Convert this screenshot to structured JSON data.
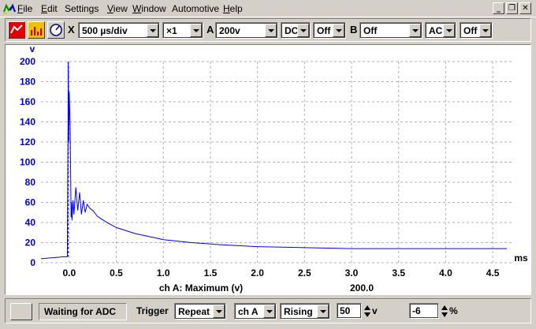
{
  "menu": {
    "items": [
      {
        "label": "File",
        "u": "F",
        "rest": "ile"
      },
      {
        "label": "Edit",
        "u": "E",
        "rest": "dit"
      },
      {
        "label": "Settings",
        "u": "",
        "rest": "Settings"
      },
      {
        "label": "View",
        "u": "V",
        "rest": "iew"
      },
      {
        "label": "Window",
        "u": "W",
        "rest": "indow"
      },
      {
        "label": "Automotive",
        "u": "",
        "rest": "Automotive"
      },
      {
        "label": "Help",
        "u": "H",
        "rest": "elp"
      }
    ],
    "window_controls": [
      "_",
      "&#x2750;",
      "X"
    ]
  },
  "toolbar": {
    "x_label": "X",
    "timebase": "500 µs/div",
    "multiplier": "×1",
    "channel_a_label": "A",
    "channel_a_range": "200v",
    "channel_a_coupling": "DC",
    "channel_a_option": "Off",
    "channel_b_label": "B",
    "channel_b_range": "Off",
    "channel_b_coupling": "AC",
    "channel_b_option": "Off"
  },
  "status": {
    "state": "Waiting for ADC",
    "trigger_label": "Trigger",
    "trigger_mode": "Repeat",
    "trigger_channel": "ch A",
    "trigger_edge": "Rising",
    "trigger_level": "50",
    "trigger_level_unit": "v",
    "pretrigger": "-6",
    "pretrigger_unit": "%"
  },
  "colors": {
    "trace": "#0000ff",
    "y_axis": "#0000cc",
    "grid": "#b0b0b0"
  },
  "chart_data": {
    "type": "line",
    "y_unit": "v",
    "x_unit": "ms",
    "xlabel": "ch A: Maximum (v)",
    "reading": "200.0",
    "ylim": [
      0,
      200
    ],
    "xlim": [
      -0.3,
      4.7
    ],
    "y_ticks": [
      "0",
      "20",
      "40",
      "60",
      "80",
      "100",
      "120",
      "140",
      "160",
      "180",
      "200"
    ],
    "x_ticks": [
      "0.0",
      "0.5",
      "1.0",
      "1.5",
      "2.0",
      "2.5",
      "3.0",
      "3.5",
      "4.0",
      "4.5"
    ],
    "grid": true,
    "series": [
      {
        "x": [
          -0.3,
          -0.05,
          -0.02,
          -0.015,
          -0.012,
          -0.01,
          -0.005,
          0.0,
          0.01,
          0.02,
          0.025,
          0.03,
          0.04,
          0.05,
          0.07,
          0.09,
          0.11,
          0.13,
          0.15,
          0.17,
          0.19,
          0.22,
          0.25,
          0.3,
          0.4,
          0.5,
          0.7,
          1.0,
          1.3,
          1.6,
          2.0,
          2.5,
          3.0,
          3.5,
          4.0,
          4.5,
          4.65
        ],
        "y": [
          4,
          6,
          6,
          100,
          140,
          198,
          120,
          170,
          135,
          45,
          60,
          42,
          62,
          48,
          75,
          52,
          70,
          48,
          62,
          50,
          58,
          54,
          52,
          46,
          40,
          35,
          29,
          23,
          20,
          18,
          16,
          15,
          14,
          14,
          14,
          14,
          14
        ]
      }
    ]
  }
}
